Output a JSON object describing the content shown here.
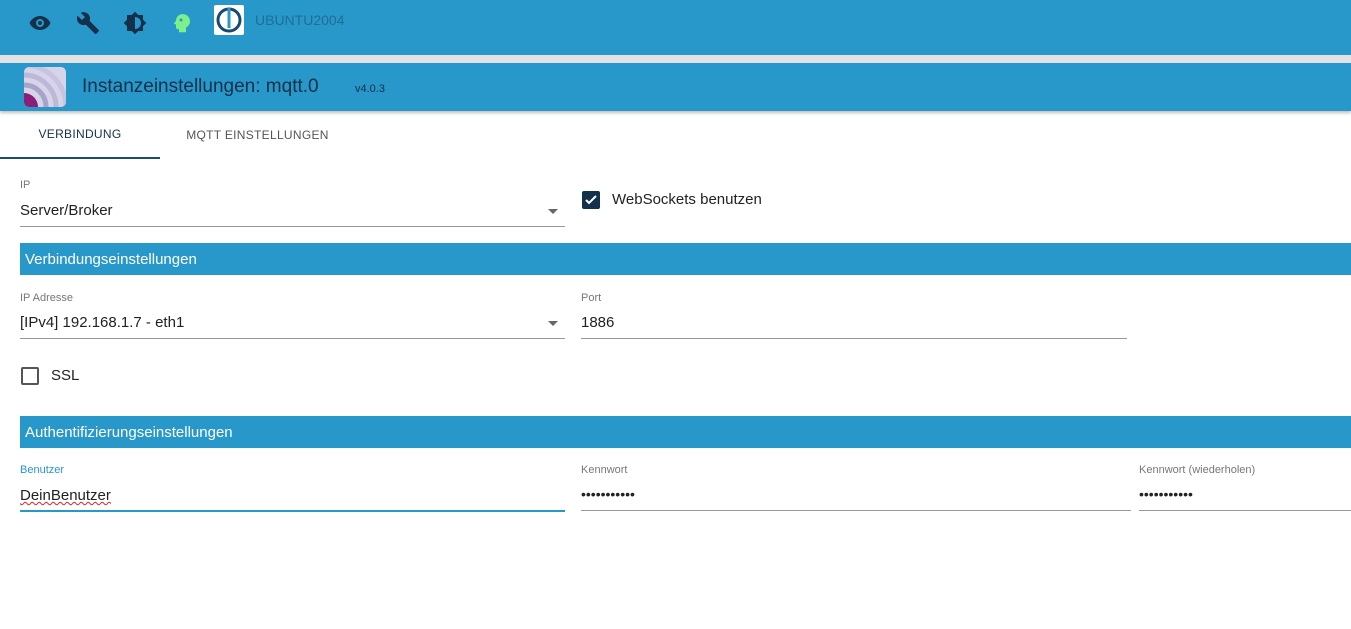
{
  "topbar": {
    "icons": [
      "eye-icon",
      "wrench-icon",
      "brightness-icon",
      "head-icon"
    ],
    "host": "UBUNTU2004"
  },
  "header": {
    "title": "Instanzeinstellungen: mqtt.0",
    "version": "v4.0.3"
  },
  "tabs": [
    {
      "label": "VERBINDUNG",
      "active": true
    },
    {
      "label": "MQTT EINSTELLUNGEN",
      "active": false
    }
  ],
  "form": {
    "ip_label": "IP",
    "ip_value": "Server/Broker",
    "websockets_label": "WebSockets benutzen",
    "websockets_checked": true,
    "section1": "Verbindungseinstellungen",
    "ipaddr_label": "IP Adresse",
    "ipaddr_value": "[IPv4] 192.168.1.7 - eth1",
    "port_label": "Port",
    "port_value": "1886",
    "ssl_label": "SSL",
    "ssl_checked": false,
    "section2": "Authentifizierungseinstellungen",
    "user_label": "Benutzer",
    "user_value": "DeinBenutzer",
    "pass_label": "Kennwort",
    "pass_value": "•••••••••••",
    "pass2_label": "Kennwort (wiederholen)",
    "pass2_value": "•••••••••••"
  },
  "colors": {
    "primary": "#2898cb",
    "dark": "#14304a",
    "focus": "#2898cb"
  }
}
